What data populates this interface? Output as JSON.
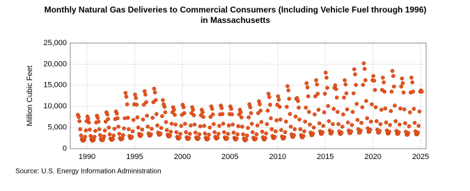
{
  "chart_data": {
    "type": "scatter",
    "title": "Monthly Natural Gas Deliveries to Commercial Consumers (Including Vehicle Fuel through 1996)",
    "subtitle": "in Massachusetts",
    "y_label": "Million Cubic Feet",
    "source": "Source: U.S. Energy Information Administration",
    "color": "#e8541e",
    "grid": true,
    "xlim": [
      1988.25,
      2025.58
    ],
    "ylim": [
      0,
      25000
    ],
    "xticks": [
      1990,
      1995,
      2000,
      2005,
      2010,
      2015,
      2020,
      2025
    ],
    "yticks": [
      {
        "value": 0,
        "label": "0"
      },
      {
        "value": 5000,
        "label": "5,000"
      },
      {
        "value": 10000,
        "label": "10,000"
      },
      {
        "value": 15000,
        "label": "15,000"
      },
      {
        "value": 20000,
        "label": "20,000"
      },
      {
        "value": 25000,
        "label": "25,000"
      }
    ],
    "x": [
      1989.04,
      1989.13,
      1989.21,
      1989.29,
      1989.38,
      1989.46,
      1989.54,
      1989.63,
      1989.71,
      1989.79,
      1989.88,
      1989.96,
      1990.04,
      1990.13,
      1990.21,
      1990.29,
      1990.38,
      1990.46,
      1990.54,
      1990.63,
      1990.71,
      1990.79,
      1990.88,
      1990.96,
      1991.04,
      1991.13,
      1991.21,
      1991.29,
      1991.38,
      1991.46,
      1991.54,
      1991.63,
      1991.71,
      1991.79,
      1991.88,
      1991.96,
      1992.04,
      1992.13,
      1992.21,
      1992.29,
      1992.38,
      1992.46,
      1992.54,
      1992.63,
      1992.71,
      1992.79,
      1992.88,
      1992.96,
      1993.04,
      1993.13,
      1993.21,
      1993.29,
      1993.38,
      1993.46,
      1993.54,
      1993.63,
      1993.71,
      1993.79,
      1993.88,
      1993.96,
      1994.04,
      1994.13,
      1994.21,
      1994.29,
      1994.38,
      1994.46,
      1994.54,
      1994.63,
      1994.71,
      1994.79,
      1994.88,
      1994.96,
      1995.04,
      1995.13,
      1995.21,
      1995.29,
      1995.38,
      1995.46,
      1995.54,
      1995.63,
      1995.71,
      1995.79,
      1995.88,
      1995.96,
      1996.04,
      1996.13,
      1996.21,
      1996.29,
      1996.38,
      1996.46,
      1996.54,
      1996.63,
      1996.71,
      1996.79,
      1996.88,
      1996.96,
      1997.04,
      1997.13,
      1997.21,
      1997.29,
      1997.38,
      1997.46,
      1997.54,
      1997.63,
      1997.71,
      1997.79,
      1997.88,
      1997.96,
      1998.04,
      1998.13,
      1998.21,
      1998.29,
      1998.38,
      1998.46,
      1998.54,
      1998.63,
      1998.71,
      1998.79,
      1998.88,
      1998.96,
      1999.04,
      1999.13,
      1999.21,
      1999.29,
      1999.38,
      1999.46,
      1999.54,
      1999.63,
      1999.71,
      1999.79,
      1999.88,
      1999.96,
      2000.04,
      2000.13,
      2000.21,
      2000.29,
      2000.38,
      2000.46,
      2000.54,
      2000.63,
      2000.71,
      2000.79,
      2000.88,
      2000.96,
      2001.04,
      2001.13,
      2001.21,
      2001.29,
      2001.38,
      2001.46,
      2001.54,
      2001.63,
      2001.71,
      2001.79,
      2001.88,
      2001.96,
      2002.04,
      2002.13,
      2002.21,
      2002.29,
      2002.38,
      2002.46,
      2002.54,
      2002.63,
      2002.71,
      2002.79,
      2002.88,
      2002.96,
      2003.04,
      2003.13,
      2003.21,
      2003.29,
      2003.38,
      2003.46,
      2003.54,
      2003.63,
      2003.71,
      2003.79,
      2003.88,
      2003.96,
      2004.04,
      2004.13,
      2004.21,
      2004.29,
      2004.38,
      2004.46,
      2004.54,
      2004.63,
      2004.71,
      2004.79,
      2004.88,
      2004.96,
      2005.04,
      2005.13,
      2005.21,
      2005.29,
      2005.38,
      2005.46,
      2005.54,
      2005.63,
      2005.71,
      2005.79,
      2005.88,
      2005.96,
      2006.04,
      2006.13,
      2006.21,
      2006.29,
      2006.38,
      2006.46,
      2006.54,
      2006.63,
      2006.71,
      2006.79,
      2006.88,
      2006.96,
      2007.04,
      2007.13,
      2007.21,
      2007.29,
      2007.38,
      2007.46,
      2007.54,
      2007.63,
      2007.71,
      2007.79,
      2007.88,
      2007.96,
      2008.04,
      2008.13,
      2008.21,
      2008.29,
      2008.38,
      2008.46,
      2008.54,
      2008.63,
      2008.71,
      2008.79,
      2008.88,
      2008.96,
      2009.04,
      2009.13,
      2009.21,
      2009.29,
      2009.38,
      2009.46,
      2009.54,
      2009.63,
      2009.71,
      2009.79,
      2009.88,
      2009.96,
      2010.04,
      2010.13,
      2010.21,
      2010.29,
      2010.38,
      2010.46,
      2010.54,
      2010.63,
      2010.71,
      2010.79,
      2010.88,
      2010.96,
      2011.04,
      2011.13,
      2011.21,
      2011.29,
      2011.38,
      2011.46,
      2011.54,
      2011.63,
      2011.71,
      2011.79,
      2011.88,
      2011.96,
      2012.04,
      2012.13,
      2012.21,
      2012.29,
      2012.38,
      2012.46,
      2012.54,
      2012.63,
      2012.71,
      2012.79,
      2012.88,
      2012.96,
      2013.04,
      2013.13,
      2013.21,
      2013.29,
      2013.38,
      2013.46,
      2013.54,
      2013.63,
      2013.71,
      2013.79,
      2013.88,
      2013.96,
      2014.04,
      2014.13,
      2014.21,
      2014.29,
      2014.38,
      2014.46,
      2014.54,
      2014.63,
      2014.71,
      2014.79,
      2014.88,
      2014.96,
      2015.04,
      2015.13,
      2015.21,
      2015.29,
      2015.38,
      2015.46,
      2015.54,
      2015.63,
      2015.71,
      2015.79,
      2015.88,
      2015.96,
      2016.04,
      2016.13,
      2016.21,
      2016.29,
      2016.38,
      2016.46,
      2016.54,
      2016.63,
      2016.71,
      2016.79,
      2016.88,
      2016.96,
      2017.04,
      2017.13,
      2017.21,
      2017.29,
      2017.38,
      2017.46,
      2017.54,
      2017.63,
      2017.71,
      2017.79,
      2017.88,
      2017.96,
      2018.04,
      2018.13,
      2018.21,
      2018.29,
      2018.38,
      2018.46,
      2018.54,
      2018.63,
      2018.71,
      2018.79,
      2018.88,
      2018.96,
      2019.04,
      2019.13,
      2019.21,
      2019.29,
      2019.38,
      2019.46,
      2019.54,
      2019.63,
      2019.71,
      2019.79,
      2019.88,
      2019.96,
      2020.04,
      2020.13,
      2020.21,
      2020.29,
      2020.38,
      2020.46,
      2020.54,
      2020.63,
      2020.71,
      2020.79,
      2020.88,
      2020.96,
      2021.04,
      2021.13,
      2021.21,
      2021.29,
      2021.38,
      2021.46,
      2021.54,
      2021.63,
      2021.71,
      2021.79,
      2021.88,
      2021.96,
      2022.04,
      2022.13,
      2022.21,
      2022.29,
      2022.38,
      2022.46,
      2022.54,
      2022.63,
      2022.71,
      2022.79,
      2022.88,
      2022.96,
      2023.04,
      2023.13,
      2023.21,
      2023.29,
      2023.38,
      2023.46,
      2023.54,
      2023.63,
      2023.71,
      2023.79,
      2023.88,
      2023.96,
      2024.04,
      2024.13,
      2024.21,
      2024.29,
      2024.38,
      2024.46,
      2024.54,
      2024.63,
      2024.71,
      2024.79,
      2024.88,
      2024.96,
      2025.04,
      2025.13
    ],
    "values": [
      8000,
      7500,
      6500,
      4600,
      3100,
      2200,
      1900,
      1900,
      2100,
      2800,
      4300,
      6500,
      7600,
      7100,
      6200,
      4500,
      3000,
      2200,
      1900,
      1900,
      2100,
      2800,
      4200,
      6200,
      7800,
      7300,
      6400,
      4600,
      3200,
      2300,
      2000,
      2000,
      2200,
      2900,
      4300,
      6400,
      8600,
      8100,
      7000,
      5000,
      3400,
      2400,
      2100,
      2100,
      2300,
      3100,
      4700,
      7000,
      8800,
      8300,
      7200,
      5200,
      3500,
      2500,
      2200,
      2200,
      2400,
      3200,
      4800,
      7200,
      13200,
      12300,
      10500,
      7300,
      4600,
      3000,
      2500,
      2500,
      2800,
      4100,
      6800,
      10500,
      12800,
      12000,
      10400,
      7400,
      5000,
      3500,
      3000,
      3000,
      3300,
      4500,
      6900,
      10400,
      13600,
      12800,
      11000,
      7800,
      5200,
      3600,
      3100,
      3100,
      3400,
      4700,
      7300,
      11000,
      14200,
      13300,
      11500,
      8200,
      5500,
      3800,
      3300,
      3300,
      3600,
      4900,
      7700,
      11500,
      10500,
      9900,
      8600,
      6300,
      4400,
      3300,
      2900,
      2900,
      3100,
      4000,
      5900,
      8600,
      9800,
      9200,
      8000,
      5700,
      3900,
      2800,
      2400,
      2400,
      2600,
      3500,
      5400,
      8000,
      10400,
      9800,
      8400,
      5900,
      3900,
      2700,
      2300,
      2300,
      2500,
      3500,
      5500,
      8400,
      9800,
      9200,
      7900,
      5700,
      3800,
      2700,
      2300,
      2300,
      2500,
      3400,
      5300,
      7900,
      9200,
      8600,
      7500,
      5400,
      3600,
      2600,
      2200,
      2200,
      2400,
      3300,
      5000,
      7500,
      10000,
      9400,
      8100,
      5800,
      3900,
      2800,
      2400,
      2400,
      2600,
      3500,
      5400,
      8100,
      10200,
      9600,
      8200,
      5900,
      3900,
      2700,
      2300,
      2300,
      2500,
      3500,
      5500,
      8200,
      10000,
      9400,
      8100,
      5700,
      3800,
      2600,
      2200,
      2200,
      2400,
      3400,
      5300,
      8100,
      9200,
      8600,
      7400,
      5200,
      3400,
      2400,
      2000,
      2000,
      2200,
      3100,
      4900,
      7400,
      10500,
      9800,
      8400,
      5900,
      3900,
      2600,
      2200,
      2200,
      2400,
      3400,
      5500,
      8400,
      11200,
      10500,
      9000,
      6300,
      4000,
      2700,
      2200,
      2200,
      2500,
      3600,
      5800,
      9000,
      13000,
      12200,
      10400,
      7200,
      4600,
      3000,
      2500,
      2500,
      2800,
      4100,
      6700,
      10400,
      12400,
      11600,
      9900,
      6900,
      4400,
      2900,
      2400,
      2400,
      2700,
      3900,
      6400,
      9900,
      14800,
      13800,
      11800,
      8200,
      5200,
      3400,
      2800,
      2800,
      3200,
      4600,
      7600,
      11800,
      12000,
      11300,
      9700,
      6900,
      4600,
      3200,
      2700,
      2700,
      3000,
      4100,
      6400,
      9700,
      15500,
      14500,
      12400,
      8700,
      5700,
      3800,
      3200,
      3200,
      3600,
      5000,
      8100,
      12400,
      16200,
      15200,
      13000,
      9200,
      6000,
      4100,
      3500,
      3500,
      3900,
      5400,
      8600,
      13000,
      18000,
      16800,
      14400,
      10100,
      6500,
      4300,
      3600,
      3600,
      4000,
      5800,
      9400,
      14400,
      15000,
      14100,
      12100,
      8700,
      5800,
      4100,
      3500,
      3500,
      3800,
      5200,
      8100,
      12100,
      16200,
      15200,
      13100,
      9300,
      6200,
      4300,
      3700,
      3700,
      4100,
      5600,
      8700,
      13100,
      18800,
      17600,
      15100,
      10600,
      6800,
      4600,
      3800,
      3800,
      4300,
      6100,
      9800,
      15100,
      20200,
      18900,
      16200,
      11300,
      7200,
      4800,
      4000,
      4000,
      4500,
      6400,
      10500,
      16200,
      17200,
      16100,
      13900,
      9800,
      6500,
      4500,
      3800,
      3800,
      4200,
      5800,
      9200,
      13900,
      16800,
      15700,
      13500,
      9500,
      6200,
      4300,
      3600,
      3600,
      4000,
      5600,
      8900,
      13500,
      18400,
      17200,
      14700,
      10200,
      6500,
      4200,
      3500,
      3500,
      3900,
      5700,
      9500,
      14700,
      16600,
      15500,
      13300,
      9300,
      6000,
      4000,
      3300,
      3300,
      3700,
      5300,
      8600,
      13300,
      16800,
      15700,
      13500,
      9400,
      6100,
      4100,
      3400,
      3400,
      3800,
      5400,
      8800,
      13500,
      13800,
      13500
    ]
  }
}
